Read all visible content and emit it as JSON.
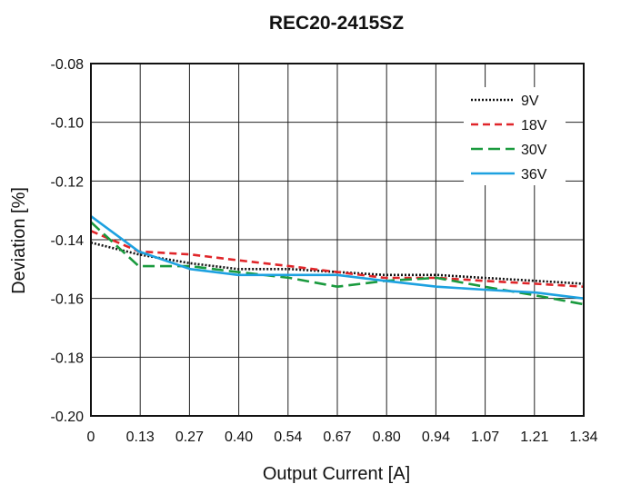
{
  "chart_data": {
    "type": "line",
    "title": "REC20-2415SZ",
    "xlabel": "Output Current [A]",
    "ylabel": "Deviation [%]",
    "x_ticks": [
      "0",
      "0.13",
      "0.27",
      "0.40",
      "0.54",
      "0.67",
      "0.80",
      "0.94",
      "1.07",
      "1.21",
      "1.34"
    ],
    "y_ticks": [
      "-0.08",
      "-0.10",
      "-0.12",
      "-0.14",
      "-0.16",
      "-0.18",
      "-0.20"
    ],
    "xlim": [
      0,
      1.34
    ],
    "ylim": [
      -0.2,
      -0.08
    ],
    "grid": true,
    "legend_position": "top-right",
    "series": [
      {
        "name": "9V",
        "color": "#111111",
        "dash": "dotted",
        "x": [
          0,
          0.13,
          0.27,
          0.4,
          0.54,
          0.67,
          0.8,
          0.94,
          1.07,
          1.21,
          1.34
        ],
        "y": [
          -0.141,
          -0.145,
          -0.148,
          -0.15,
          -0.15,
          -0.151,
          -0.152,
          -0.152,
          -0.153,
          -0.154,
          -0.155
        ]
      },
      {
        "name": "18V",
        "color": "#e0262a",
        "dash": "short-dash",
        "x": [
          0,
          0.13,
          0.27,
          0.4,
          0.54,
          0.67,
          0.8,
          0.94,
          1.07,
          1.21,
          1.34
        ],
        "y": [
          -0.137,
          -0.144,
          -0.145,
          -0.147,
          -0.149,
          -0.151,
          -0.153,
          -0.153,
          -0.154,
          -0.155,
          -0.156
        ]
      },
      {
        "name": "30V",
        "color": "#1a9a3e",
        "dash": "long-dash",
        "x": [
          0,
          0.13,
          0.27,
          0.4,
          0.54,
          0.67,
          0.8,
          0.94,
          1.07,
          1.21,
          1.34
        ],
        "y": [
          -0.134,
          -0.149,
          -0.149,
          -0.151,
          -0.153,
          -0.156,
          -0.154,
          -0.153,
          -0.156,
          -0.159,
          -0.162
        ]
      },
      {
        "name": "36V",
        "color": "#1da1e0",
        "dash": "solid",
        "x": [
          0,
          0.13,
          0.27,
          0.4,
          0.54,
          0.67,
          0.8,
          0.94,
          1.07,
          1.21,
          1.34
        ],
        "y": [
          -0.132,
          -0.144,
          -0.15,
          -0.152,
          -0.152,
          -0.152,
          -0.154,
          -0.156,
          -0.157,
          -0.158,
          -0.16
        ]
      }
    ]
  }
}
